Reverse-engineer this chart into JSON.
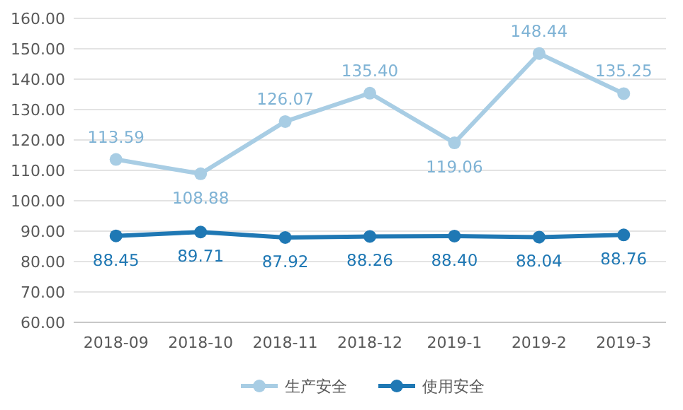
{
  "chart_data": {
    "type": "line",
    "categories": [
      "2018-09",
      "2018-10",
      "2018-11",
      "2018-12",
      "2019-1",
      "2019-2",
      "2019-3"
    ],
    "series": [
      {
        "name": "生产安全",
        "color": "#a8cde4",
        "values": [
          113.59,
          108.88,
          126.07,
          135.4,
          119.06,
          148.44,
          135.25
        ],
        "value_labels": [
          "113.59",
          "108.88",
          "126.07",
          "135.40",
          "119.06",
          "148.44",
          "135.25"
        ]
      },
      {
        "name": "使用安全",
        "color": "#1f78b4",
        "values": [
          88.45,
          89.71,
          87.92,
          88.26,
          88.4,
          88.04,
          88.76
        ],
        "value_labels": [
          "88.45",
          "89.71",
          "87.92",
          "88.26",
          "88.40",
          "88.04",
          "88.76"
        ]
      }
    ],
    "ylim": [
      60,
      160
    ],
    "yticks": [
      {
        "value": 60,
        "label": "60.00"
      },
      {
        "value": 70,
        "label": "70.00"
      },
      {
        "value": 80,
        "label": "80.00"
      },
      {
        "value": 90,
        "label": "90.00"
      },
      {
        "value": 100,
        "label": "100.00"
      },
      {
        "value": 110,
        "label": "110.00"
      },
      {
        "value": 120,
        "label": "120.00"
      },
      {
        "value": 130,
        "label": "130.00"
      },
      {
        "value": 140,
        "label": "140.00"
      },
      {
        "value": 150,
        "label": "150.00"
      },
      {
        "value": 160,
        "label": "160.00"
      }
    ],
    "grid": "y",
    "legend": "bottom",
    "marker": "circle",
    "line_style": "solid"
  }
}
